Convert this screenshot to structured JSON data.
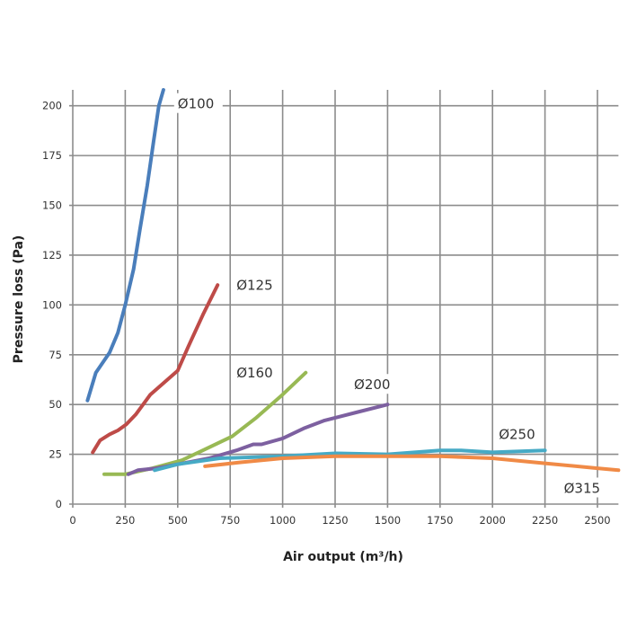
{
  "chart_data": {
    "type": "line",
    "title": "",
    "xlabel": "Air output (m³/h)",
    "ylabel": "Pressure loss (Pa)",
    "xlim": [
      0,
      2600
    ],
    "ylim": [
      0,
      208
    ],
    "grid": true,
    "x_ticks": [
      0,
      250,
      500,
      750,
      1000,
      1250,
      1500,
      1750,
      2000,
      2250,
      2500
    ],
    "y_ticks": [
      0,
      25,
      50,
      75,
      100,
      125,
      150,
      175,
      200
    ],
    "series": [
      {
        "name": "Ø100",
        "color": "#4a7ebb",
        "points": [
          [
            70,
            52
          ],
          [
            110,
            66
          ],
          [
            175,
            76
          ],
          [
            215,
            86
          ],
          [
            250,
            100
          ],
          [
            290,
            118
          ],
          [
            320,
            138
          ],
          [
            355,
            160
          ],
          [
            385,
            182
          ],
          [
            410,
            200
          ],
          [
            432,
            210
          ]
        ]
      },
      {
        "name": "Ø125",
        "color": "#be4b48",
        "points": [
          [
            95,
            26
          ],
          [
            130,
            32
          ],
          [
            175,
            35
          ],
          [
            215,
            37
          ],
          [
            255,
            40
          ],
          [
            300,
            45
          ],
          [
            370,
            55
          ],
          [
            500,
            67
          ],
          [
            550,
            79
          ],
          [
            620,
            95
          ],
          [
            690,
            110
          ]
        ]
      },
      {
        "name": "Ø160",
        "color": "#98b954",
        "points": [
          [
            150,
            15
          ],
          [
            250,
            15
          ],
          [
            380,
            18
          ],
          [
            520,
            22
          ],
          [
            620,
            27
          ],
          [
            760,
            34
          ],
          [
            870,
            43
          ],
          [
            1000,
            55
          ],
          [
            1110,
            66
          ]
        ]
      },
      {
        "name": "Ø200",
        "color": "#7d60a0",
        "points": [
          [
            265,
            15
          ],
          [
            310,
            17
          ],
          [
            400,
            18
          ],
          [
            500,
            20
          ],
          [
            650,
            23
          ],
          [
            780,
            27
          ],
          [
            860,
            30
          ],
          [
            900,
            30
          ],
          [
            1000,
            33
          ],
          [
            1100,
            38
          ],
          [
            1200,
            42
          ],
          [
            1350,
            46
          ],
          [
            1500,
            50
          ]
        ]
      },
      {
        "name": "Ø250",
        "color": "#46aac5",
        "points": [
          [
            390,
            17
          ],
          [
            500,
            20
          ],
          [
            700,
            23
          ],
          [
            1000,
            24
          ],
          [
            1250,
            25.5
          ],
          [
            1500,
            25
          ],
          [
            1750,
            27
          ],
          [
            1850,
            27
          ],
          [
            2000,
            26
          ],
          [
            2250,
            27
          ]
        ]
      },
      {
        "name": "Ø315",
        "color": "#f08a46",
        "points": [
          [
            630,
            19
          ],
          [
            800,
            21
          ],
          [
            1000,
            23
          ],
          [
            1250,
            24
          ],
          [
            1750,
            24
          ],
          [
            2000,
            23
          ],
          [
            2250,
            20.5
          ],
          [
            2500,
            18
          ],
          [
            2600,
            17
          ]
        ]
      }
    ]
  }
}
